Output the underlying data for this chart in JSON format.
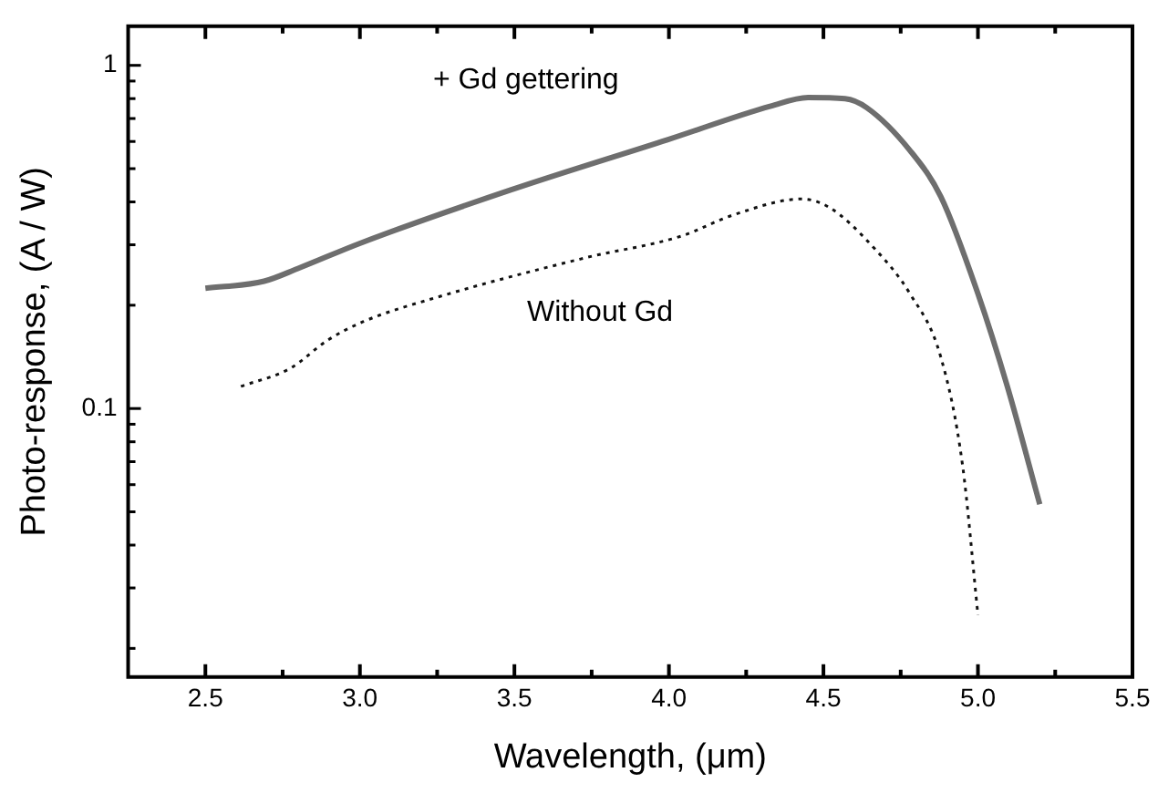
{
  "chart_data": {
    "type": "line",
    "xlabel": "Wavelength, (μm)",
    "ylabel": "Photo-response, (A / W)",
    "log": "y",
    "grid": false,
    "legend": false,
    "marker": "none",
    "xlim": [
      2.25,
      5.5
    ],
    "ylim": [
      0.0165,
      1.3
    ],
    "xticks": [
      2.5,
      {
        "value": 2.75,
        "label": null
      },
      "3.0",
      {
        "value": 3.25,
        "label": null
      },
      3.5,
      {
        "value": 3.75,
        "label": null
      },
      "4.0",
      {
        "value": 4.25,
        "label": null
      },
      4.5,
      {
        "value": 4.75,
        "label": null
      },
      "5.0",
      {
        "value": 5.25,
        "label": null
      },
      5.5
    ],
    "yticks": [
      {
        "value": 0.02,
        "label": null
      },
      {
        "value": 0.03,
        "label": null
      },
      {
        "value": 0.04,
        "label": null
      },
      {
        "value": 0.05,
        "label": null
      },
      {
        "value": 0.06,
        "label": null
      },
      {
        "value": 0.07,
        "label": null
      },
      {
        "value": 0.08,
        "label": null
      },
      {
        "value": 0.09,
        "label": null
      },
      0.1,
      {
        "value": 0.2,
        "label": null
      },
      {
        "value": 0.3,
        "label": null
      },
      {
        "value": 0.4,
        "label": null
      },
      {
        "value": 0.5,
        "label": null
      },
      {
        "value": 0.6,
        "label": null
      },
      {
        "value": 0.7,
        "label": null
      },
      {
        "value": 0.8,
        "label": null
      },
      {
        "value": 0.9,
        "label": null
      },
      1
    ],
    "series": [
      {
        "name": "+ Gd gettering",
        "color": "#6e6e6e",
        "line_style": "solid",
        "x": [
          2.5,
          2.69,
          2.8,
          3.0,
          3.49,
          3.995,
          4.33,
          4.45,
          4.57,
          4.64,
          4.78,
          4.88,
          5.0,
          5.095,
          5.2
        ],
        "values": [
          0.224,
          0.235,
          0.256,
          0.303,
          0.434,
          0.607,
          0.761,
          0.806,
          0.8,
          0.753,
          0.565,
          0.414,
          0.216,
          0.116,
          0.0526
        ]
      },
      {
        "name": "Without Gd",
        "color": "#111111",
        "line_style": "dotted",
        "x": [
          2.615,
          2.775,
          2.895,
          3.01,
          3.25,
          3.73,
          4.04,
          4.21,
          4.43,
          4.52,
          4.66,
          4.78,
          4.88,
          4.95,
          5.0
        ],
        "values": [
          0.116,
          0.131,
          0.158,
          0.179,
          0.211,
          0.275,
          0.318,
          0.367,
          0.408,
          0.385,
          0.296,
          0.216,
          0.141,
          0.0685,
          0.025
        ]
      }
    ]
  }
}
